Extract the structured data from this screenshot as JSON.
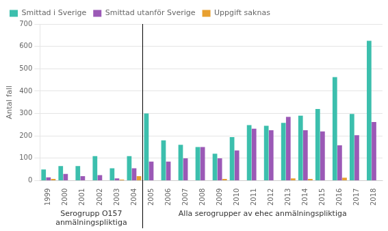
{
  "chart_data": {
    "type": "bar",
    "categories": [
      1999,
      2000,
      2001,
      2002,
      2003,
      2004,
      2005,
      2006,
      2007,
      2008,
      2009,
      2010,
      2011,
      2012,
      2013,
      2014,
      2015,
      2016,
      2017,
      2018
    ],
    "series": [
      {
        "name": "Smittad i Sverige",
        "color": "#3cbfad",
        "values": [
          50,
          65,
          65,
          110,
          55,
          110,
          300,
          180,
          160,
          150,
          120,
          195,
          248,
          245,
          258,
          290,
          320,
          463,
          298,
          625
        ]
      },
      {
        "name": "Smittad utanför Sverige",
        "color": "#9b59b6",
        "values": [
          15,
          30,
          20,
          25,
          10,
          55,
          85,
          85,
          100,
          150,
          100,
          135,
          232,
          225,
          285,
          225,
          220,
          158,
          203,
          262
        ]
      },
      {
        "name": "Uppgift saknas",
        "color": "#e8a030",
        "values": [
          8,
          2,
          0,
          2,
          5,
          20,
          0,
          0,
          0,
          0,
          8,
          0,
          0,
          0,
          10,
          8,
          0,
          13,
          0,
          0
        ]
      }
    ],
    "ylabel": "Antal fall",
    "ylim": [
      0,
      700
    ],
    "yticks": [
      0,
      100,
      200,
      300,
      400,
      500,
      600,
      700
    ],
    "grid": true,
    "legend": "upper left",
    "annotations": [
      {
        "text": "Serogrupp O157\nanmälningspliktiga",
        "categories": [
          1999,
          2004
        ]
      },
      {
        "text": "Alla serogrupper av ehec anmälningspliktiga",
        "categories": [
          2005,
          2018
        ]
      }
    ]
  }
}
